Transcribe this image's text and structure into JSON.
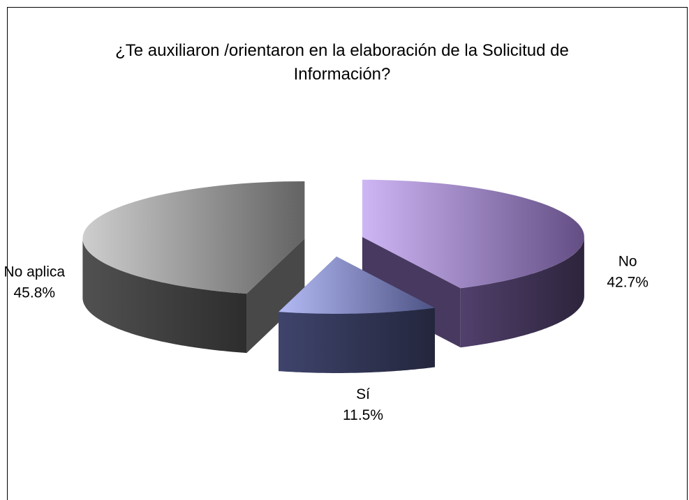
{
  "chart_data": {
    "type": "pie3d",
    "title": "¿Te auxiliaron /orientaron en la elaboración de la Solicitud de Información?",
    "categories": [
      "No",
      "Sí",
      "No aplica"
    ],
    "values": [
      42.7,
      11.5,
      45.8
    ],
    "value_labels": [
      "42.7%",
      "11.5%",
      "45.8%"
    ],
    "colors": [
      "#b48ef0",
      "#8c96f0",
      "#b4b4b4"
    ]
  }
}
